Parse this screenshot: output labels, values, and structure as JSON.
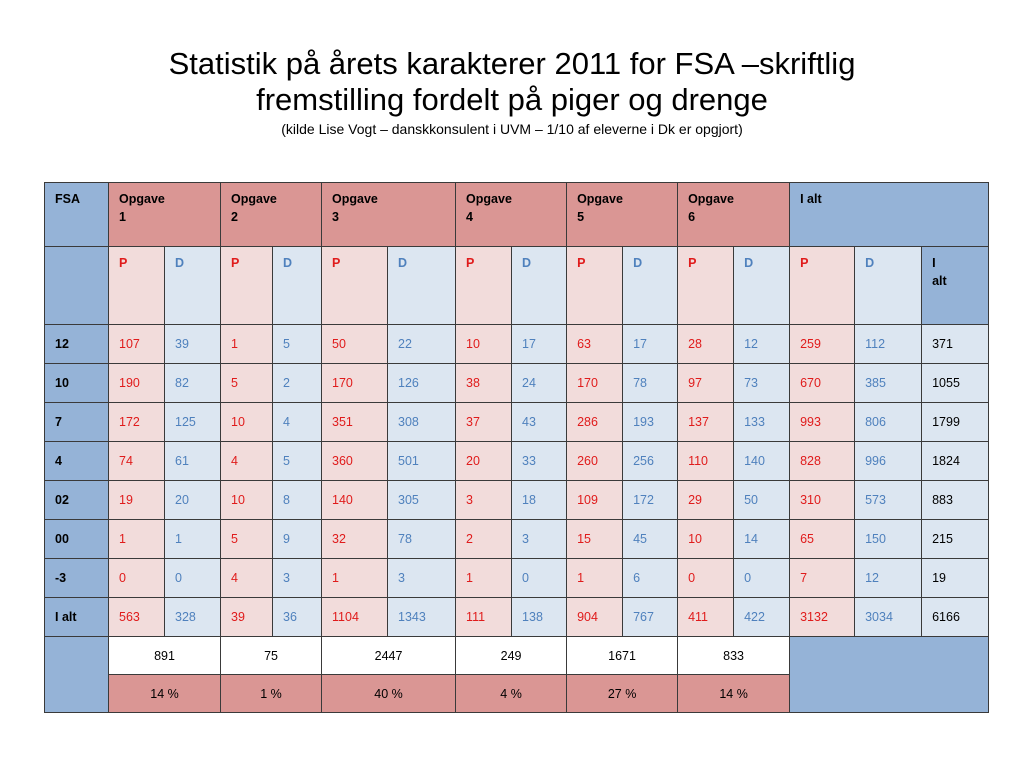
{
  "title": {
    "line1": "Statistik på årets karakterer 2011 for FSA –skriftlig",
    "line2": "fremstilling fordelt på piger og drenge",
    "source": "(kilde Lise Vogt – danskkonsulent i UVM – 1/10 af eleverne i Dk er opgjort)"
  },
  "table": {
    "corner": "FSA",
    "groups": [
      {
        "l1": "Opgave",
        "l2": "1"
      },
      {
        "l1": "Opgave",
        "l2": "2"
      },
      {
        "l1": "Opgave",
        "l2": "3"
      },
      {
        "l1": "Opgave",
        "l2": "4"
      },
      {
        "l1": "Opgave",
        "l2": "5"
      },
      {
        "l1": "Opgave",
        "l2": "6"
      }
    ],
    "total_group": "I alt",
    "p_label": "P",
    "d_label": "D",
    "total_col": {
      "l1": "I",
      "l2": "alt"
    },
    "rows": [
      {
        "grade": "12",
        "values": [
          "107",
          "39",
          "1",
          "5",
          "50",
          "22",
          "10",
          "17",
          "63",
          "17",
          "28",
          "12",
          "259",
          "112",
          "371"
        ]
      },
      {
        "grade": "10",
        "values": [
          "190",
          "82",
          "5",
          "2",
          "170",
          "126",
          "38",
          "24",
          "170",
          "78",
          "97",
          "73",
          "670",
          "385",
          "1055"
        ]
      },
      {
        "grade": "7",
        "values": [
          "172",
          "125",
          "10",
          "4",
          "351",
          "308",
          "37",
          "43",
          "286",
          "193",
          "137",
          "133",
          "993",
          "806",
          "1799"
        ]
      },
      {
        "grade": "4",
        "values": [
          "74",
          "61",
          "4",
          "5",
          "360",
          "501",
          "20",
          "33",
          "260",
          "256",
          "110",
          "140",
          "828",
          "996",
          "1824"
        ]
      },
      {
        "grade": "02",
        "values": [
          "19",
          "20",
          "10",
          "8",
          "140",
          "305",
          "3",
          "18",
          "109",
          "172",
          "29",
          "50",
          "310",
          "573",
          "883"
        ]
      },
      {
        "grade": "00",
        "values": [
          "1",
          "1",
          "5",
          "9",
          "32",
          "78",
          "2",
          "3",
          "15",
          "45",
          "10",
          "14",
          "65",
          "150",
          "215"
        ]
      },
      {
        "grade": "-3",
        "values": [
          "0",
          "0",
          "4",
          "3",
          "1",
          "3",
          "1",
          "0",
          "1",
          "6",
          "0",
          "0",
          "7",
          "12",
          "19"
        ]
      },
      {
        "grade": "I alt",
        "values": [
          "563",
          "328",
          "39",
          "36",
          "1104",
          "1343",
          "111",
          "138",
          "904",
          "767",
          "411",
          "422",
          "3132",
          "3034",
          "6166"
        ]
      }
    ],
    "sums": [
      "891",
      "75",
      "2447",
      "249",
      "1671",
      "833"
    ],
    "percents": [
      "14 %",
      "1 %",
      "40 %",
      "4 %",
      "27 %",
      "14 %"
    ]
  },
  "colors": {
    "header_blue": "#95b3d7",
    "header_red": "#da9694",
    "p_bg": "#f2dcdb",
    "d_bg": "#dce6f1",
    "p_text": "#e01b1b",
    "d_text": "#4f81bd"
  }
}
